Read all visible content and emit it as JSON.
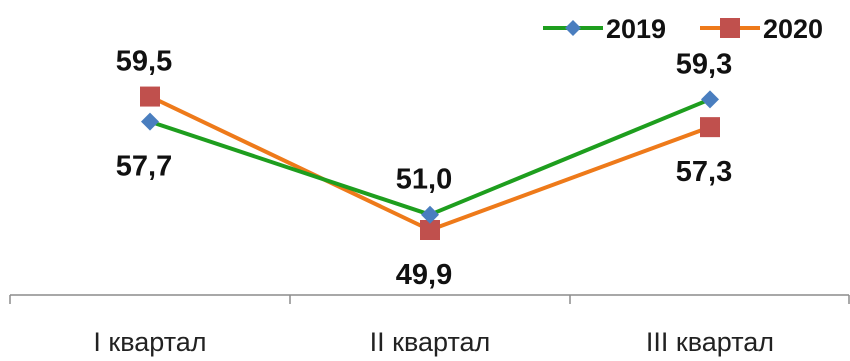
{
  "chart_data": {
    "type": "line",
    "categories": [
      "I квартал",
      "II квартал",
      "III квартал"
    ],
    "series": [
      {
        "name": "2019",
        "values": [
          57.7,
          51.0,
          59.3
        ],
        "labels": [
          "57,7",
          "51,0",
          "59,3"
        ],
        "color": "#1e9e1e",
        "marker": "diamond",
        "marker_color": "#4a7ebf"
      },
      {
        "name": "2020",
        "values": [
          59.5,
          49.9,
          57.3
        ],
        "labels": [
          "59,5",
          "49,9",
          "57,3"
        ],
        "color": "#ee7a1a",
        "marker": "square",
        "marker_color": "#c0504d"
      }
    ],
    "legend_position": "top-right",
    "grid": false
  }
}
